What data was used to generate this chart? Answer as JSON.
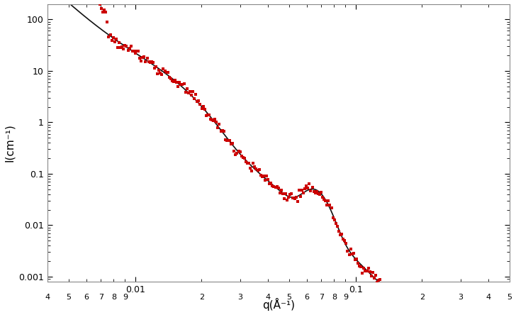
{
  "title": "",
  "xlabel": "q(Å⁻¹)",
  "ylabel": "I(cm⁻¹)",
  "xlim": [
    0.004,
    0.5
  ],
  "ylim": [
    0.0008,
    200
  ],
  "background_color": "#ffffff",
  "marker_color": "#cc0000",
  "line_color": "#111111",
  "marker": "s",
  "marker_size": 3.0,
  "line_width": 1.2,
  "figsize": [
    7.28,
    4.44
  ],
  "dpi": 100
}
